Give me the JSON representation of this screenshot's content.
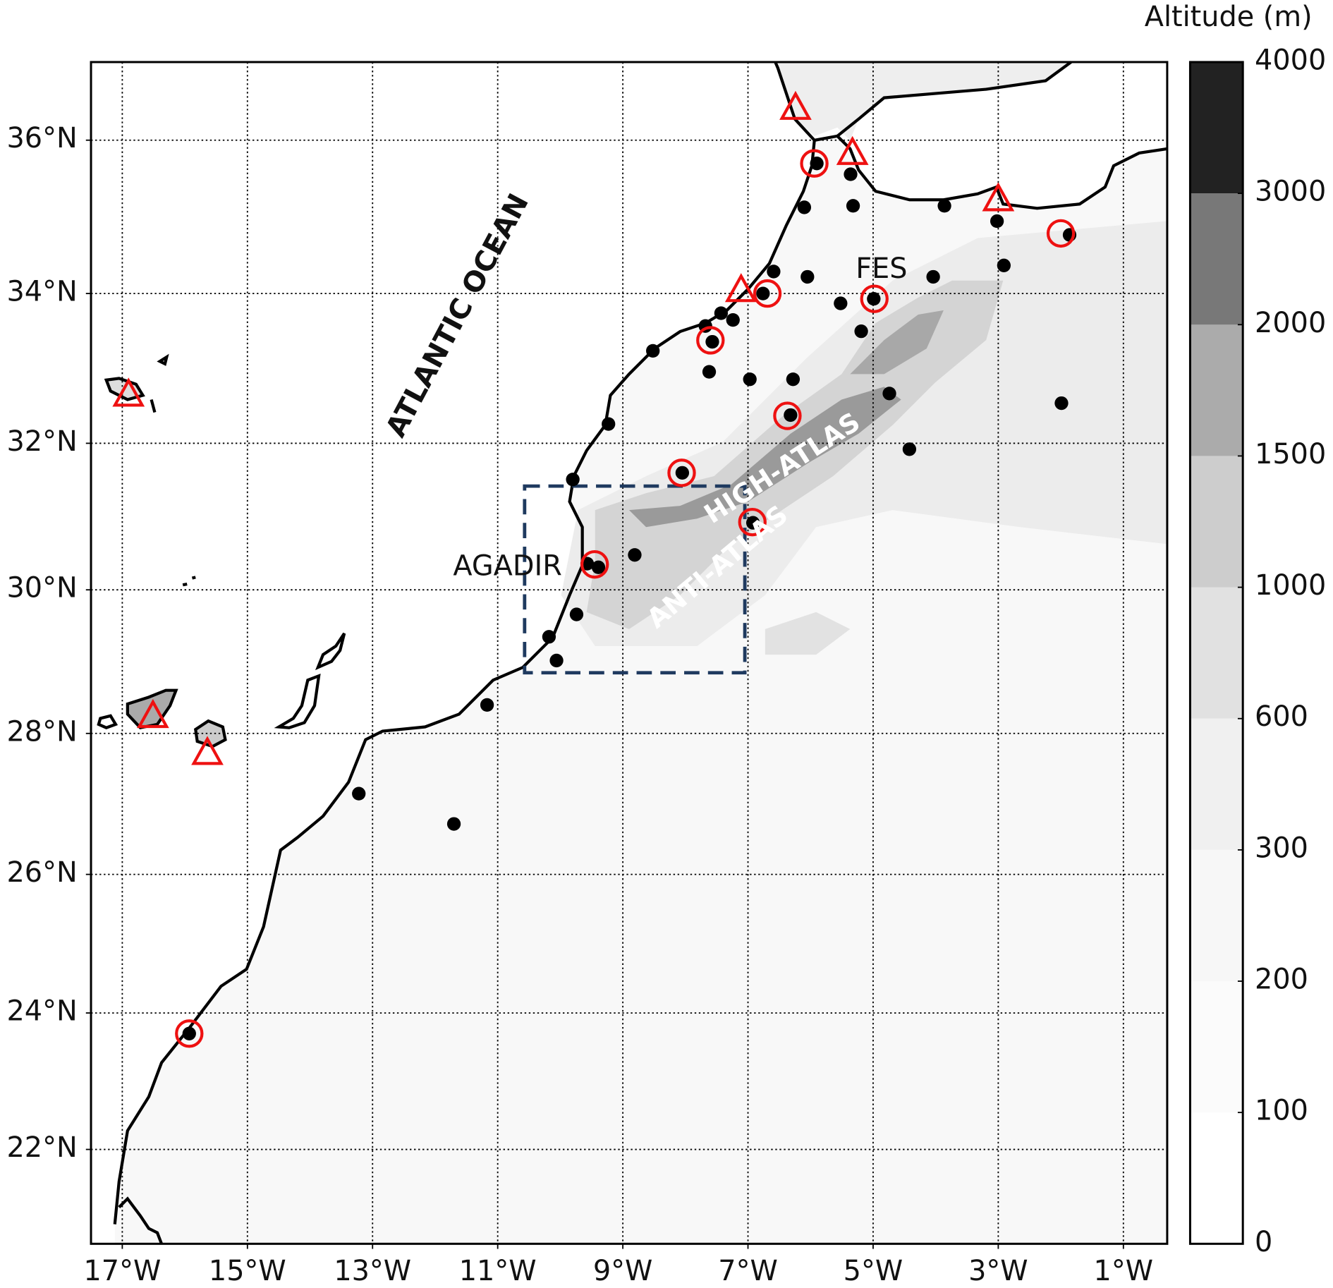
{
  "map": {
    "xlim": [
      -17.5,
      -0.3
    ],
    "ylim": [
      20.6,
      37
    ],
    "lon_ticks": [
      {
        "value": -17,
        "label": "17°W"
      },
      {
        "value": -15,
        "label": "15°W"
      },
      {
        "value": -13,
        "label": "13°W"
      },
      {
        "value": -11,
        "label": "11°W"
      },
      {
        "value": -9,
        "label": "9°W"
      },
      {
        "value": -7,
        "label": "7°W"
      },
      {
        "value": -5,
        "label": "5°W"
      },
      {
        "value": -3,
        "label": "3°W"
      },
      {
        "value": -1,
        "label": "1°W"
      }
    ],
    "lat_ticks": [
      {
        "value": 22,
        "label": "22°N"
      },
      {
        "value": 24,
        "label": "24°N"
      },
      {
        "value": 26,
        "label": "26°N"
      },
      {
        "value": 28,
        "label": "28°N"
      },
      {
        "value": 30,
        "label": "30°N"
      },
      {
        "value": 32,
        "label": "32°N"
      },
      {
        "value": 34,
        "label": "34°N"
      },
      {
        "value": 36,
        "label": "36°N"
      }
    ],
    "grid": true,
    "colorbar": {
      "label": "Altitude (m)",
      "ticks": [
        0,
        100,
        200,
        300,
        600,
        1000,
        1500,
        2000,
        3000,
        4000
      ],
      "colors": [
        "#ffffff",
        "#fbfbfb",
        "#f7f7f7",
        "#f0f0f0",
        "#e1e1e1",
        "#cdcdcd",
        "#ababab",
        "#787878",
        "#222222"
      ]
    },
    "labels": [
      "ATLANTIC OCEAN",
      "FES",
      "AGADIR",
      "HIGH-ATLAS",
      "ANTI-ATLAS"
    ],
    "stations": {
      "color": "#000000",
      "lon": [
        -5.9,
        -6.1,
        -5.36,
        -5.32,
        -3.86,
        -3.02,
        -1.86,
        -2.91,
        -6.05,
        -6.59,
        -6.76,
        -4.04,
        -5.52,
        -4.99,
        -5.19,
        -7.43,
        -7.24,
        -7.68,
        -7.57,
        -8.52,
        -7.62,
        -6.97,
        -6.28,
        -6.32,
        -4.74,
        -1.99,
        -9.23,
        -4.42,
        -8.05,
        -9.8,
        -6.92,
        -8.81,
        -9.57,
        -9.39,
        -9.74,
        -10.18,
        -10.06,
        -11.17,
        -13.22,
        -11.7,
        -15.93
      ],
      "lat": [
        35.7,
        35.13,
        35.56,
        35.15,
        35.15,
        34.95,
        34.77,
        34.37,
        34.22,
        34.29,
        34.0,
        34.22,
        33.87,
        33.93,
        33.5,
        33.74,
        33.65,
        33.57,
        33.36,
        33.24,
        32.96,
        32.86,
        32.86,
        32.38,
        32.67,
        32.54,
        32.26,
        31.92,
        31.6,
        31.51,
        30.92,
        30.48,
        30.36,
        30.31,
        29.66,
        29.35,
        29.02,
        28.4,
        27.15,
        26.72,
        23.7
      ]
    },
    "circles": {
      "color": "#ee1111",
      "lon": [
        -5.94,
        -2.0,
        -4.98,
        -6.69,
        -7.6,
        -6.37,
        -8.06,
        -6.93,
        -9.45,
        -15.93
      ],
      "lat": [
        35.7,
        34.79,
        33.93,
        34.0,
        33.38,
        32.37,
        31.6,
        30.93,
        30.35,
        23.7
      ]
    },
    "triangles": {
      "color": "#ee1111",
      "lon": [
        -6.24,
        -5.33,
        -3.0,
        -7.11,
        -16.9,
        -16.51,
        -15.64
      ],
      "lat": [
        36.42,
        35.84,
        35.24,
        34.05,
        32.66,
        28.25,
        27.73
      ]
    },
    "box": {
      "color": "#1f3a5f",
      "lon": [
        -10.57,
        -7.05
      ],
      "lat": [
        28.85,
        31.42
      ]
    }
  }
}
